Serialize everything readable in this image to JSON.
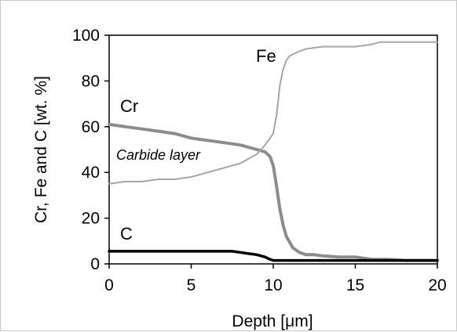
{
  "chart_data": {
    "type": "line",
    "xlabel": "Depth [μm]",
    "ylabel": "Cr, Fe and C  [wt. %]",
    "xlim": [
      0,
      20
    ],
    "ylim": [
      0,
      100
    ],
    "x_ticks": [
      "0",
      "5",
      "10",
      "15",
      "20"
    ],
    "y_ticks": [
      "0",
      "20",
      "40",
      "60",
      "80",
      "100"
    ],
    "grid": false,
    "legend": "none",
    "annotation": "Carbide layer",
    "series": [
      {
        "name": "Cr",
        "color": "#8c8c8c",
        "x": [
          0,
          1,
          2,
          3,
          4,
          5,
          6,
          7,
          8,
          9,
          9.5,
          9.8,
          10.0,
          10.2,
          10.4,
          10.6,
          10.8,
          11.2,
          11.6,
          12.0,
          12.5,
          13,
          14,
          15,
          16,
          17,
          18,
          20
        ],
        "values": [
          61,
          60,
          59,
          58,
          57,
          55,
          54,
          53,
          52,
          50,
          49,
          47,
          43,
          34,
          24,
          17,
          12,
          7,
          5,
          4,
          4,
          3.5,
          3,
          3,
          2,
          2,
          1.5,
          1.5
        ]
      },
      {
        "name": "Fe",
        "color": "#a6a6a6",
        "x": [
          0,
          1,
          2,
          3,
          4,
          5,
          6,
          7,
          8,
          9,
          9.5,
          10.0,
          10.2,
          10.4,
          10.6,
          10.8,
          11.0,
          11.3,
          11.6,
          12.0,
          13,
          14,
          15,
          16,
          16.5,
          17,
          18,
          20
        ],
        "values": [
          35,
          36,
          36,
          37,
          37,
          38,
          40,
          42,
          44,
          48,
          52,
          57,
          65,
          78,
          85,
          89,
          91,
          92,
          93,
          94,
          95,
          95,
          95,
          96,
          97,
          97,
          97,
          97
        ]
      },
      {
        "name": "C",
        "color": "#000000",
        "x": [
          0,
          2,
          4,
          6,
          7.5,
          8,
          8.5,
          9,
          9.5,
          9.8,
          10,
          12,
          15,
          20
        ],
        "values": [
          5.5,
          5.5,
          5.5,
          5.5,
          5.5,
          5,
          4.5,
          4,
          3,
          2,
          1.5,
          1.5,
          1.5,
          1.5
        ]
      }
    ]
  }
}
